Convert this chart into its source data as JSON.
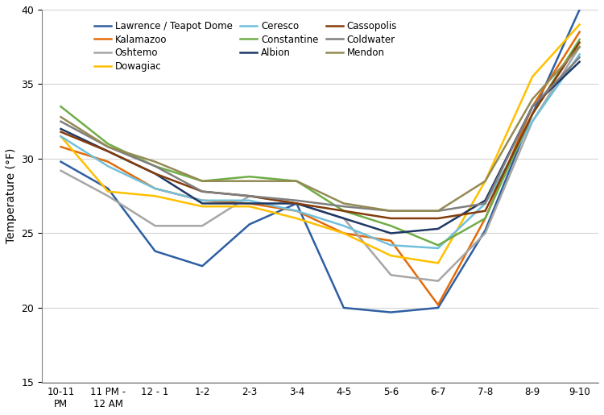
{
  "ylabel": "Temperature (°F)",
  "x_labels": [
    "10-11\nPM",
    "11 PM -\n12 AM",
    "12 - 1",
    "1-2",
    "2-3",
    "3-4",
    "4-5",
    "5-6",
    "6-7",
    "7-8",
    "8-9",
    "9-10"
  ],
  "ylim": [
    15,
    40
  ],
  "yticks": [
    15,
    20,
    25,
    30,
    35,
    40
  ],
  "legend_order": [
    0,
    1,
    2,
    3,
    4,
    5,
    6,
    7,
    8,
    9
  ],
  "series": [
    {
      "name": "Lawrence / Teapot Dome",
      "color": "#2E5FA3",
      "data": [
        29.8,
        28.0,
        23.8,
        22.8,
        25.6,
        27.0,
        20.0,
        19.7,
        20.0,
        25.2,
        33.0,
        40.0
      ]
    },
    {
      "name": "Kalamazoo",
      "color": "#E26B0A",
      "data": [
        30.8,
        29.8,
        28.0,
        27.2,
        27.0,
        26.5,
        25.0,
        24.5,
        20.2,
        26.0,
        33.5,
        38.5
      ]
    },
    {
      "name": "Oshtemo",
      "color": "#A6A6A6",
      "data": [
        29.2,
        27.5,
        25.5,
        25.5,
        27.5,
        27.0,
        26.0,
        22.2,
        21.8,
        25.0,
        32.5,
        37.5
      ]
    },
    {
      "name": "Dowagiac",
      "color": "#FFC000",
      "data": [
        31.5,
        27.8,
        27.5,
        26.8,
        26.8,
        26.0,
        25.0,
        23.5,
        23.0,
        28.5,
        35.5,
        39.0
      ]
    },
    {
      "name": "Ceresco",
      "color": "#70C0DC",
      "data": [
        31.5,
        29.5,
        28.0,
        27.2,
        27.2,
        26.5,
        25.5,
        24.2,
        24.0,
        27.0,
        32.5,
        37.0
      ]
    },
    {
      "name": "Constantine",
      "color": "#70AD47",
      "data": [
        33.5,
        31.0,
        29.5,
        28.5,
        28.8,
        28.5,
        26.5,
        25.5,
        24.2,
        26.0,
        33.0,
        38.0
      ]
    },
    {
      "name": "Albion",
      "color": "#1F3864",
      "data": [
        32.0,
        30.5,
        29.0,
        27.0,
        27.0,
        27.0,
        26.0,
        25.0,
        25.3,
        27.2,
        33.5,
        36.5
      ]
    },
    {
      "name": "Cassopolis",
      "color": "#843C0C",
      "data": [
        31.8,
        30.5,
        29.0,
        27.8,
        27.5,
        27.0,
        26.5,
        26.0,
        26.0,
        26.5,
        33.0,
        37.8
      ]
    },
    {
      "name": "Coldwater",
      "color": "#7F7F7F",
      "data": [
        32.5,
        30.8,
        29.5,
        27.8,
        27.5,
        27.2,
        26.8,
        26.5,
        26.5,
        27.0,
        33.5,
        36.8
      ]
    },
    {
      "name": "Mendon",
      "color": "#948A54",
      "data": [
        32.8,
        30.8,
        29.8,
        28.5,
        28.5,
        28.5,
        27.0,
        26.5,
        26.5,
        28.5,
        34.0,
        37.5
      ]
    }
  ],
  "figsize": [
    7.5,
    5.15
  ],
  "dpi": 100
}
